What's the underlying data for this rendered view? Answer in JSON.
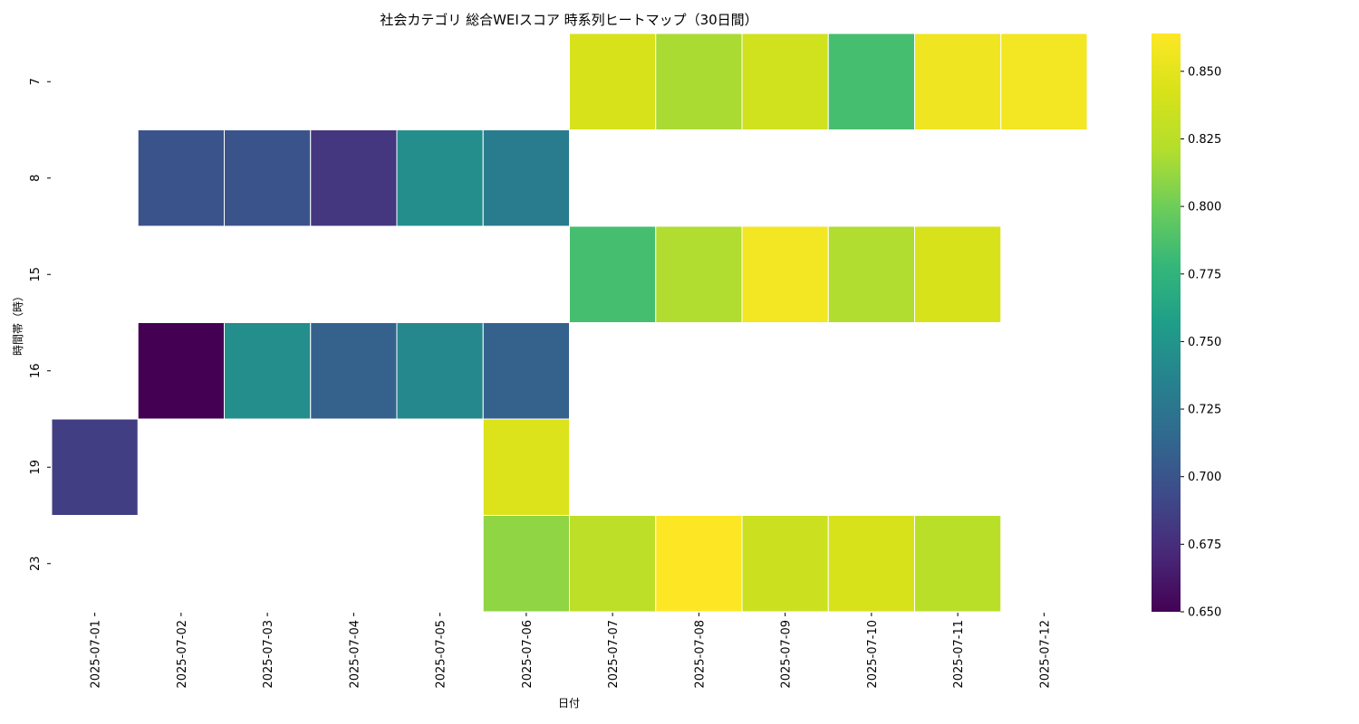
{
  "chart_data": {
    "type": "heatmap",
    "title": "社会カテゴリ 総合WEIスコア 時系列ヒートマップ（30日間）",
    "xlabel": "日付",
    "ylabel": "時間帯（時）",
    "x": [
      "2025-07-01",
      "2025-07-02",
      "2025-07-03",
      "2025-07-04",
      "2025-07-05",
      "2025-07-06",
      "2025-07-07",
      "2025-07-08",
      "2025-07-09",
      "2025-07-10",
      "2025-07-11",
      "2025-07-12"
    ],
    "y": [
      "7",
      "8",
      "15",
      "16",
      "19",
      "23"
    ],
    "values": [
      [
        null,
        null,
        null,
        null,
        null,
        null,
        0.842,
        0.818,
        0.838,
        0.785,
        0.856,
        0.858
      ],
      [
        null,
        0.7,
        0.7,
        0.68,
        0.745,
        0.73,
        null,
        null,
        null,
        null,
        null,
        null
      ],
      [
        null,
        null,
        null,
        null,
        null,
        null,
        0.785,
        0.82,
        0.858,
        0.82,
        0.842,
        null
      ],
      [
        null,
        0.65,
        0.745,
        0.71,
        0.74,
        0.71,
        null,
        null,
        null,
        null,
        null,
        null
      ],
      [
        0.685,
        null,
        null,
        null,
        null,
        0.845,
        null,
        null,
        null,
        null,
        null,
        null
      ],
      [
        null,
        null,
        null,
        null,
        null,
        0.81,
        0.827,
        0.864,
        0.835,
        0.842,
        0.825,
        null
      ]
    ],
    "colorscale": "viridis",
    "color_range": [
      0.65,
      0.864
    ],
    "colorbar_ticks": [
      "0.650",
      "0.675",
      "0.700",
      "0.725",
      "0.750",
      "0.775",
      "0.800",
      "0.825",
      "0.850"
    ],
    "grid": false,
    "colorbar_position": "right"
  }
}
